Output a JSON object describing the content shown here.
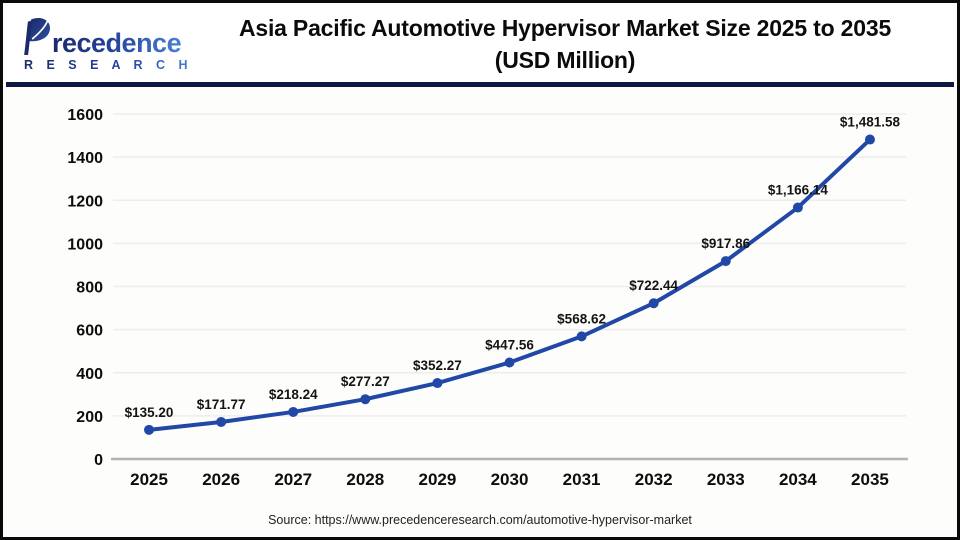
{
  "brand": {
    "initial": "P",
    "rest": "recedence",
    "sub": "R E S E A R C H",
    "navy": "#1b2a6b",
    "blue": "#4a7fd4"
  },
  "header": {
    "title_line1": "Asia Pacific Automotive Hypervisor Market Size 2025 to 2035",
    "title_line2": "(USD Million)"
  },
  "footer": {
    "source": "Source: https://www.precedenceresearch.com/automotive-hypervisor-market"
  },
  "chart_data": {
    "type": "line",
    "title": "Asia Pacific Automotive Hypervisor Market Size 2025 to 2035 (USD Million)",
    "categories": [
      "2025",
      "2026",
      "2027",
      "2028",
      "2029",
      "2030",
      "2031",
      "2032",
      "2033",
      "2034",
      "2035"
    ],
    "values": [
      135.2,
      171.77,
      218.24,
      277.27,
      352.27,
      447.56,
      568.62,
      722.44,
      917.86,
      1166.14,
      1481.58
    ],
    "point_labels": [
      "$135.20",
      "$171.77",
      "$218.24",
      "$277.27",
      "$352.27",
      "$447.56",
      "$568.62",
      "$722.44",
      "$917.86",
      "$1,166.14",
      "$1,481.58"
    ],
    "xlabel": "",
    "ylabel": "",
    "ylim": [
      0,
      1600
    ],
    "yticks": [
      0,
      200,
      400,
      600,
      800,
      1000,
      1200,
      1400,
      1600
    ],
    "grid": "horizontal",
    "legend": "none",
    "line_color": "#2148a6",
    "point_color": "#2148a6",
    "grid_color": "#ededeb",
    "axis_line_color": "#b3b3b1"
  }
}
